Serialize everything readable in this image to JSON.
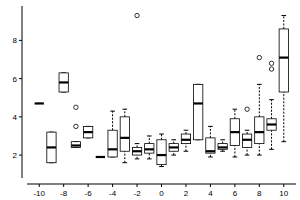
{
  "chart_data": {
    "type": "box",
    "x": [
      -10,
      -9,
      -8,
      -7,
      -6,
      -5,
      -4,
      -3,
      -2,
      -1,
      0,
      1,
      2,
      3,
      4,
      5,
      6,
      7,
      8,
      9,
      10
    ],
    "min": [
      4.7,
      1.6,
      5.3,
      2.4,
      2.9,
      1.9,
      1.9,
      1.6,
      1.8,
      1.8,
      1.4,
      2.0,
      2.2,
      2.8,
      1.9,
      2.2,
      1.9,
      2.0,
      2.0,
      2.3,
      2.7
    ],
    "q1": [
      4.7,
      1.6,
      5.3,
      2.4,
      2.9,
      1.9,
      1.9,
      2.2,
      2.0,
      2.1,
      1.5,
      2.2,
      2.6,
      2.8,
      2.1,
      2.3,
      2.5,
      2.4,
      2.6,
      3.3,
      5.3
    ],
    "median": [
      4.7,
      2.4,
      5.8,
      2.5,
      3.2,
      1.9,
      2.3,
      2.9,
      2.2,
      2.3,
      2.0,
      2.4,
      2.8,
      4.7,
      2.2,
      2.4,
      3.2,
      2.8,
      3.2,
      3.6,
      7.1
    ],
    "q3": [
      4.7,
      3.2,
      6.3,
      2.7,
      3.5,
      1.9,
      3.3,
      4.0,
      2.4,
      2.6,
      2.8,
      2.6,
      3.1,
      5.7,
      2.9,
      2.6,
      3.9,
      3.1,
      4.0,
      3.9,
      8.6
    ],
    "max": [
      4.7,
      3.2,
      6.3,
      2.7,
      3.5,
      1.9,
      4.3,
      4.4,
      2.6,
      3.0,
      3.1,
      2.8,
      3.3,
      5.7,
      3.5,
      2.8,
      4.4,
      3.3,
      5.7,
      4.9,
      9.3
    ],
    "outliers": [
      [],
      [],
      [],
      [
        4.5,
        3.5
      ],
      [],
      [],
      [],
      [],
      [
        9.3
      ],
      [],
      [],
      [],
      [],
      [],
      [],
      [],
      [],
      [
        4.4
      ],
      [
        7.1
      ],
      [
        6.8,
        6.5
      ],
      []
    ],
    "xlim": [
      -11,
      11
    ],
    "xticks": [
      -10,
      -8,
      -6,
      -4,
      -2,
      0,
      2,
      4,
      6,
      8,
      10
    ],
    "ylim": [
      0.8,
      9.8
    ],
    "yticks": [
      2,
      4,
      6,
      8
    ],
    "color": "#000000"
  }
}
